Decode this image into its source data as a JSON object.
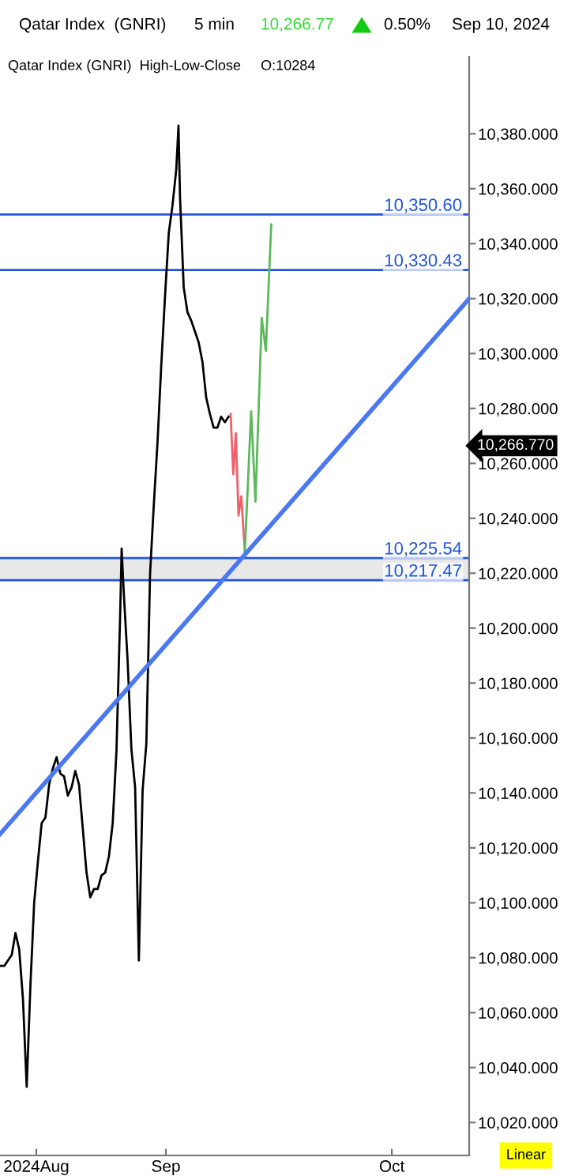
{
  "chart_data": {
    "type": "line",
    "title": "Qatar Index  (GNRI)",
    "annotations": [
      "5 min",
      "10,266.77",
      "0.50%",
      "Sep 10, 2024",
      "Qatar Index (GNRI)  High-Low-Close     O:10284",
      "Linear",
      "10,266.770"
    ],
    "series": [
      {
        "color": "#000000",
        "x": [
          "2024-08-12T00:00",
          "2024-08-12T12:00",
          "2024-08-13T00:00",
          "2024-08-13T12:00",
          "2024-08-14T00:00",
          "2024-08-14T12:00",
          "2024-08-15T00:00",
          "2024-08-15T12:00",
          "2024-08-16T00:00",
          "2024-08-16T12:00",
          "2024-08-17T00:00",
          "2024-08-17T12:00",
          "2024-08-18T00:00",
          "2024-08-18T12:00",
          "2024-08-19T00:00",
          "2024-08-19T12:00",
          "2024-08-20T00:00",
          "2024-08-20T12:00",
          "2024-08-21T00:00",
          "2024-08-21T12:00",
          "2024-08-22T00:00",
          "2024-08-22T12:00",
          "2024-08-23T00:00",
          "2024-08-23T12:00",
          "2024-08-24T00:00",
          "2024-08-24T12:00",
          "2024-08-25T00:00",
          "2024-08-25T12:00",
          "2024-08-26T00:00",
          "2024-08-26T12:00",
          "2024-08-27T00:00",
          "2024-08-27T12:00",
          "2024-08-28T00:00",
          "2024-08-28T04:40",
          "2024-08-28T12:00",
          "2024-08-29T00:00",
          "2024-08-29T12:00",
          "2024-08-30T00:00",
          "2024-08-30T12:00",
          "2024-08-31T00:00",
          "2024-08-31T12:00",
          "2024-09-01T00:00",
          "2024-09-01T12:00",
          "2024-09-02T00:00",
          "2024-09-02T12:00",
          "2024-09-03T00:00",
          "2024-09-03T12:00",
          "2024-09-04T00:00",
          "2024-09-04T12:00",
          "2024-09-04T19:10",
          "2024-09-05T00:00",
          "2024-09-05T12:00",
          "2024-09-06T00:00",
          "2024-09-06T12:00",
          "2024-09-07T00:00",
          "2024-09-07T12:00",
          "2024-09-08T00:00",
          "2024-09-08T12:00",
          "2024-09-09T00:00",
          "2024-09-09T12:00",
          "2024-09-10T00:00",
          "2024-09-10T12:00",
          "2024-09-11T00:00",
          "2024-09-11T12:00"
        ],
        "values": [
          10077,
          10077,
          10079,
          10081,
          10089,
          10083,
          10065,
          10033,
          10070,
          10100,
          10115,
          10129,
          10131,
          10143,
          10149,
          10153,
          10147,
          10146,
          10139,
          10142,
          10148,
          10143,
          10127,
          10111,
          10102,
          10105,
          10105,
          10110,
          10111,
          10117,
          10129,
          10155,
          10205,
          10229,
          10212,
          10188,
          10156,
          10142,
          10079,
          10141,
          10158,
          10220,
          10245,
          10268,
          10296,
          10321,
          10344,
          10354,
          10367,
          10383,
          10357,
          10324,
          10315,
          10312,
          10308,
          10304,
          10297,
          10284,
          10278,
          10273,
          10273,
          10277,
          10275,
          10277
        ]
      },
      {
        "color": "#f0606a",
        "x": [
          "2024-09-11T18:30",
          "2024-09-12T03:00",
          "2024-09-12T11:10",
          "2024-09-12T19:50",
          "2024-09-13T04:30",
          "2024-09-13T16:10"
        ],
        "values": [
          10278,
          10256,
          10271,
          10241,
          10248,
          10228
        ]
      },
      {
        "color": "#5cb85c",
        "x": [
          "2024-09-13T16:10",
          "2024-09-14T12:20",
          "2024-09-15T02:10",
          "2024-09-15T22:20",
          "2024-09-16T11:30",
          "2024-09-17T04:50"
        ],
        "values": [
          10228,
          10279,
          10246,
          10313,
          10301,
          10347
        ]
      },
      {
        "color": "#4a78f0",
        "x": [
          "2024-08-11T22:20",
          "2024-10-13T16:00"
        ],
        "values": [
          10125,
          10320
        ]
      }
    ],
    "ref_lines": [
      {
        "axis": "y",
        "value": 10350.6,
        "label": "10,350.60",
        "color": "#2255dd"
      },
      {
        "axis": "y",
        "value": 10330.43,
        "label": "10,330.43",
        "color": "#2255dd"
      },
      {
        "axis": "y",
        "value": 10225.54,
        "label": "10,225.54",
        "color": "#2255dd"
      },
      {
        "axis": "y",
        "value": 10217.47,
        "label": "10,217.47",
        "color": "#2255dd"
      }
    ],
    "bands": [
      {
        "axis": "y",
        "from": 10217.47,
        "to": 10225.54,
        "color": "#e8e8e8"
      }
    ],
    "xlim": [
      "2024-08-11T22:20",
      "2024-10-13T16:00"
    ],
    "xticks": [
      {
        "value": "2024-08-16T19:00",
        "label": "2024Aug"
      },
      {
        "value": "2024-09-03T02:40",
        "label": "Sep"
      },
      {
        "value": "2024-10-03T07:50",
        "label": "Oct"
      }
    ],
    "ylim": [
      10008,
      10408
    ],
    "yticks": [
      {
        "value": 10020,
        "label": "10,020.000"
      },
      {
        "value": 10040,
        "label": "10,040.000"
      },
      {
        "value": 10060,
        "label": "10,060.000"
      },
      {
        "value": 10080,
        "label": "10,080.000"
      },
      {
        "value": 10100,
        "label": "10,100.000"
      },
      {
        "value": 10120,
        "label": "10,120.000"
      },
      {
        "value": 10140,
        "label": "10,140.000"
      },
      {
        "value": 10160,
        "label": "10,160.000"
      },
      {
        "value": 10180,
        "label": "10,180.000"
      },
      {
        "value": 10200,
        "label": "10,200.000"
      },
      {
        "value": 10220,
        "label": "10,220.000"
      },
      {
        "value": 10240,
        "label": "10,240.000"
      },
      {
        "value": 10260,
        "label": "10,260.000"
      },
      {
        "value": 10280,
        "label": "10,280.000"
      },
      {
        "value": 10300,
        "label": "10,300.000"
      },
      {
        "value": 10320,
        "label": "10,320.000"
      },
      {
        "value": 10340,
        "label": "10,340.000"
      },
      {
        "value": 10360,
        "label": "10,360.000"
      },
      {
        "value": 10380,
        "label": "10,380.000"
      }
    ],
    "grid": false,
    "marker": "none",
    "line_style": "solid"
  }
}
